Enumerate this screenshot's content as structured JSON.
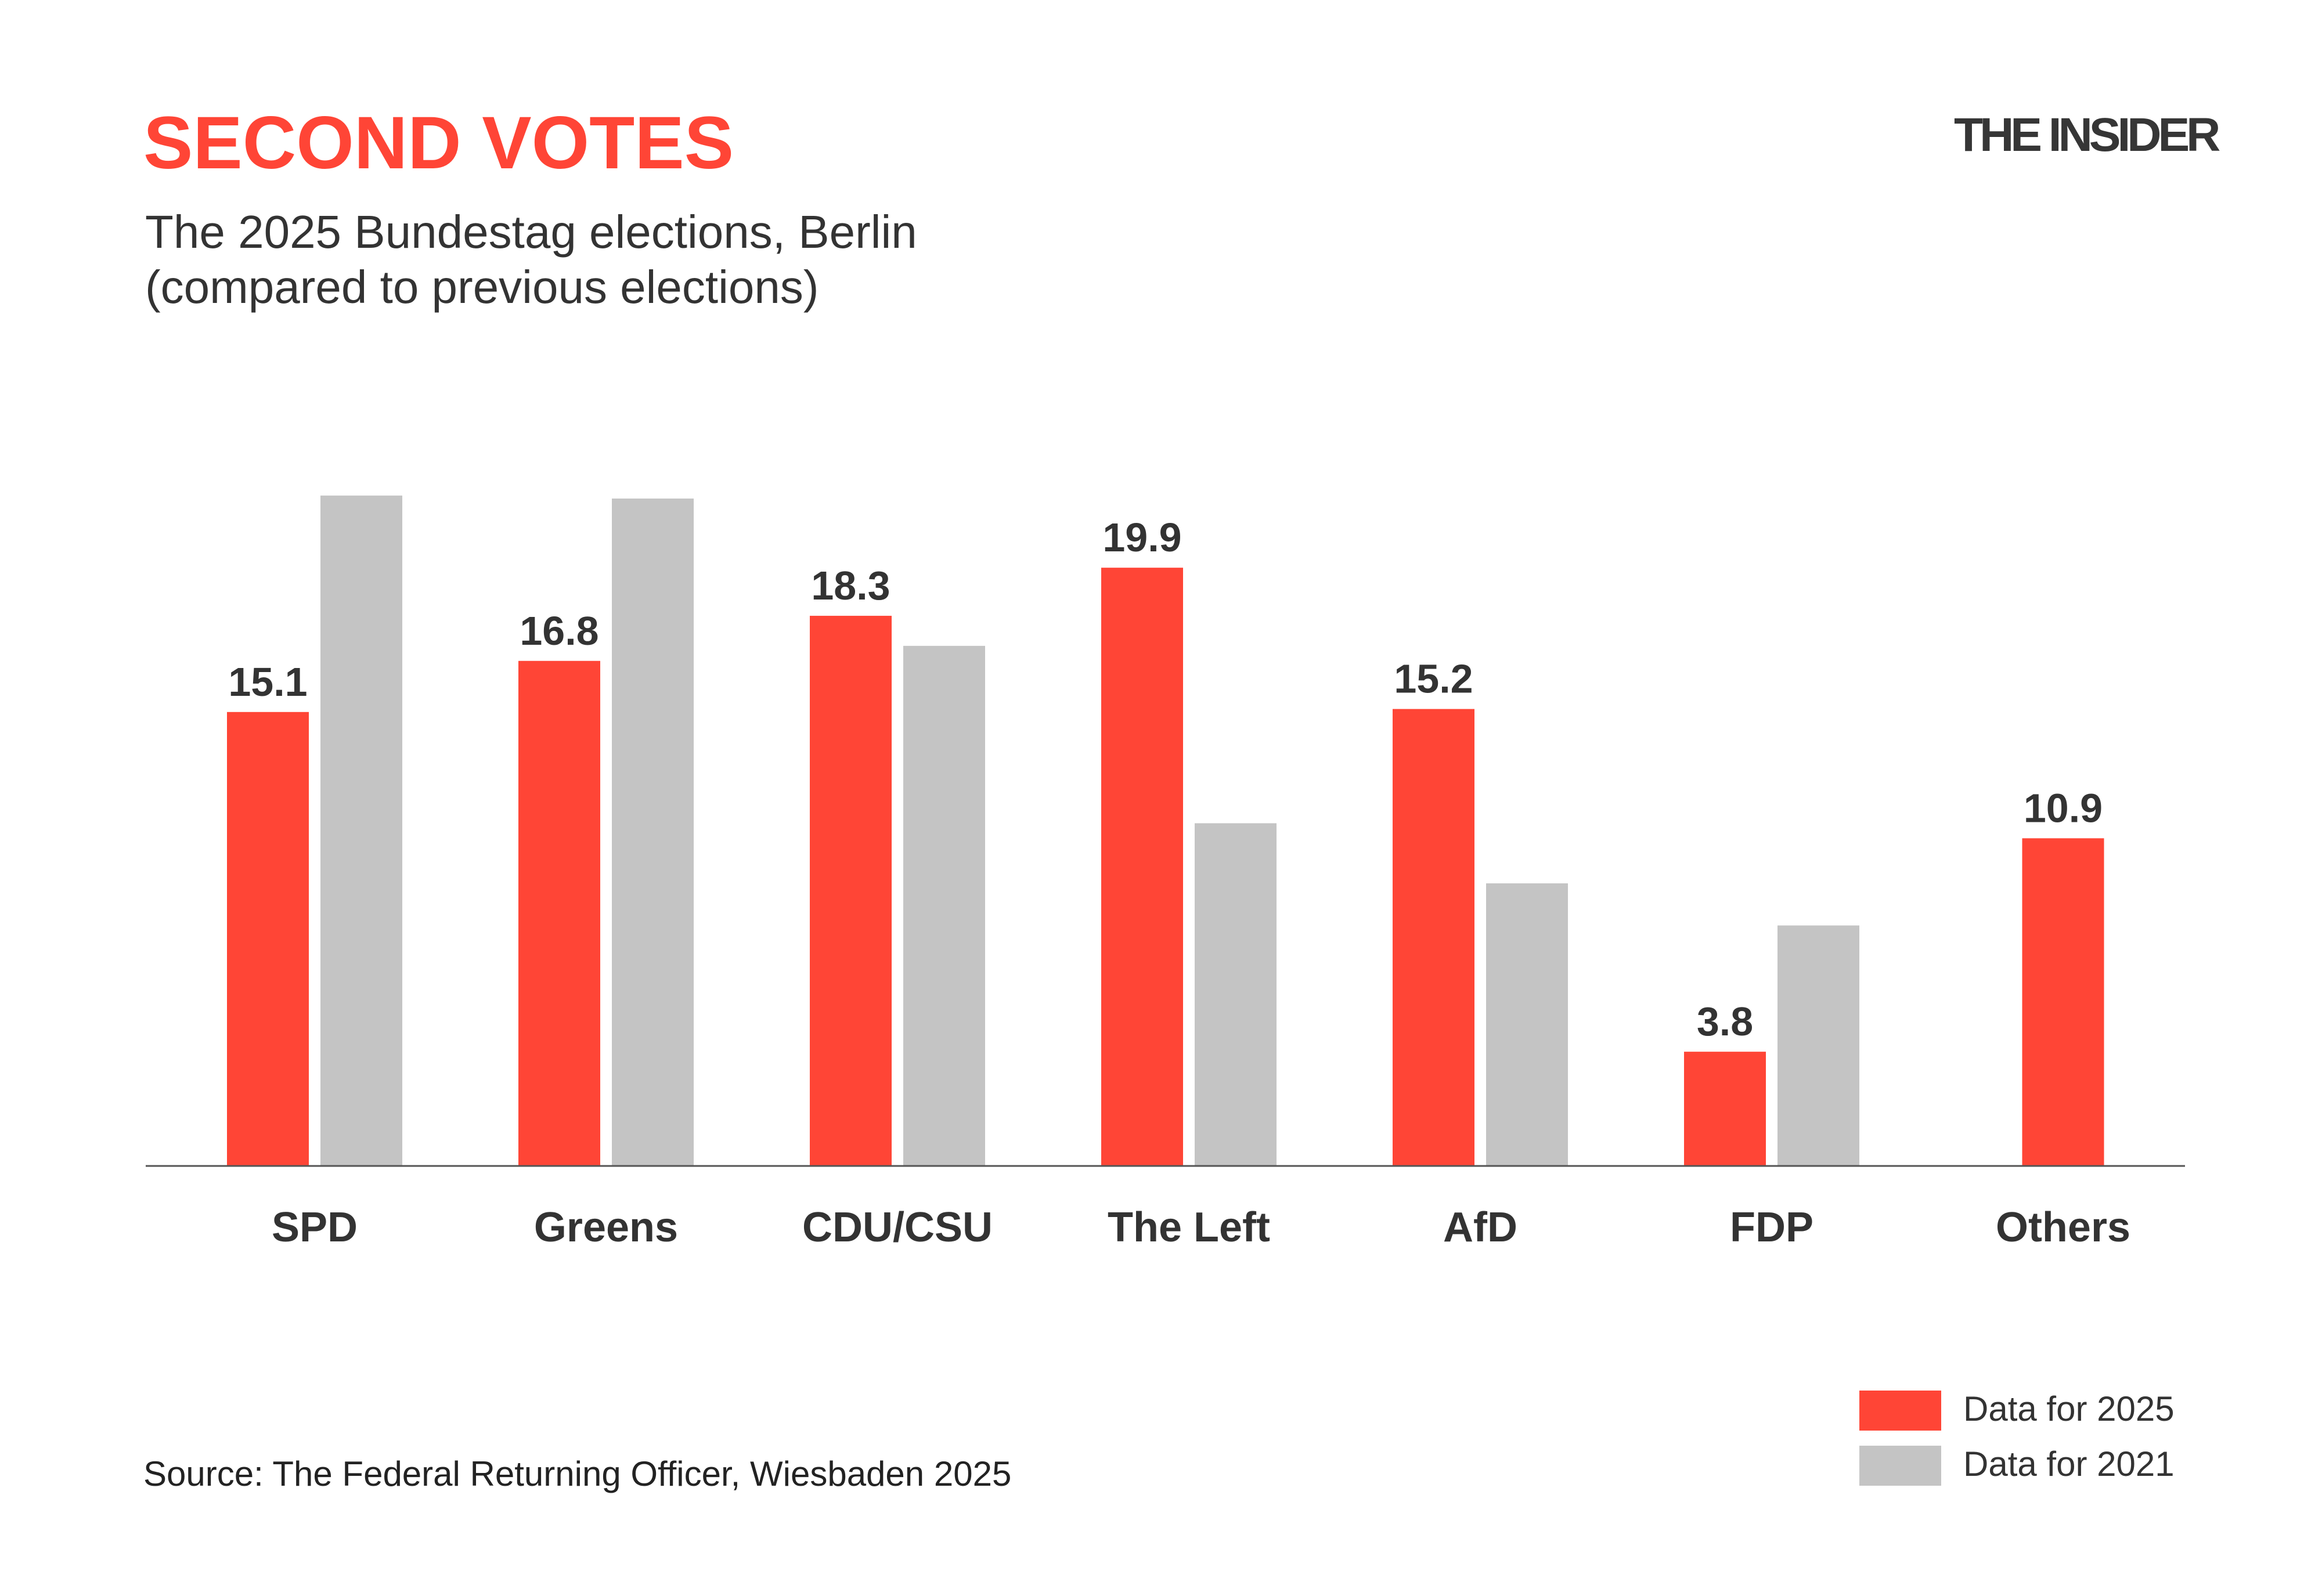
{
  "header": {
    "title": "SECOND VOTES",
    "subtitle_line1": "The 2025 Bundestag elections, Berlin",
    "subtitle_line2": "(compared to previous elections)",
    "logo": "THE INSIDER"
  },
  "source": "Source: The Federal Returning Officer, Wiesbaden 2025",
  "colors": {
    "series_2025": "#ff4536",
    "series_2021": "#c4c4c4",
    "text": "#333333"
  },
  "chart_data": {
    "type": "bar",
    "title": "SECOND VOTES",
    "categories": [
      "SPD",
      "Greens",
      "CDU/CSU",
      "The Left",
      "AfD",
      "FDP",
      "Others"
    ],
    "series": [
      {
        "name": "Data for 2025",
        "values": [
          15.1,
          16.8,
          18.3,
          19.9,
          15.2,
          3.8,
          10.9
        ],
        "labels": [
          "15.1",
          "16.8",
          "18.3",
          "19.9",
          "15.2",
          "3.8",
          "10.9"
        ]
      },
      {
        "name": "Data for 2021",
        "values": [
          22.3,
          22.2,
          17.3,
          11.4,
          9.4,
          8.0,
          null
        ]
      }
    ],
    "ylim": [
      0,
      22.3
    ],
    "grid": false,
    "legend_position": "bottom-right"
  }
}
